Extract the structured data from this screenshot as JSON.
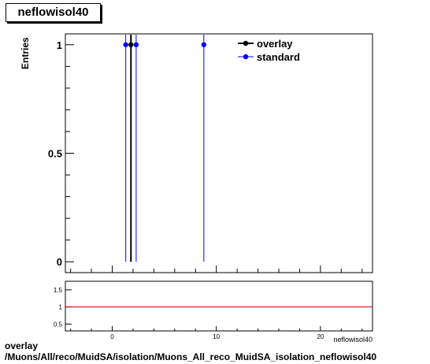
{
  "title": "neflowisol40",
  "footer": {
    "line1": "overlay",
    "line2": "/Muons/All/reco/MuidSA/isolation/Muons_All_reco_MuidSA_isolation_neflowisol40"
  },
  "colors": {
    "overlay": "#000000",
    "standard": "#0000ff",
    "ratio_line": "#cc0000"
  },
  "chart_data": [
    {
      "type": "scatter",
      "panel": "main",
      "ylabel": "Entries",
      "xlabel": "neflowisol40",
      "xlim": [
        -4.5,
        25
      ],
      "ylim": [
        -0.05,
        1.05
      ],
      "yticks": [
        0,
        0.5,
        1
      ],
      "ytick_labels": [
        "0",
        "0.5",
        "1"
      ],
      "legend_placement": "top-right",
      "series": [
        {
          "name": "overlay",
          "color": "#000000",
          "x": [
            1.8
          ],
          "y": [
            1
          ]
        },
        {
          "name": "standard",
          "color": "#0000ff",
          "x": [
            1.3,
            2.3,
            8.8
          ],
          "y": [
            1,
            1,
            1
          ]
        }
      ]
    },
    {
      "type": "line",
      "panel": "ratio",
      "xlim": [
        -4.5,
        25
      ],
      "ylim": [
        0.3,
        1.75
      ],
      "xticks": [
        0,
        10,
        20
      ],
      "xtick_labels": [
        "0",
        "10",
        "20"
      ],
      "yticks": [
        0.5,
        1,
        1.5
      ],
      "ytick_labels": [
        "0.5",
        "1",
        "1.5"
      ],
      "reference_line": 1
    }
  ]
}
